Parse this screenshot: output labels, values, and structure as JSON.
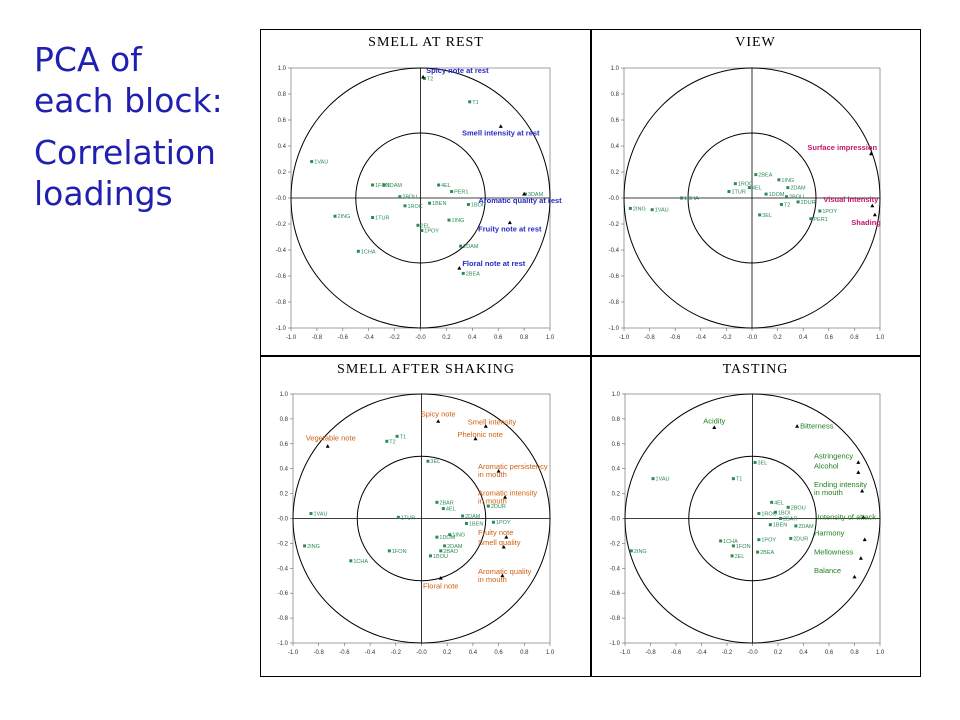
{
  "slide": {
    "title_lines": [
      "PCA of",
      "each block:",
      "Correlation",
      "loadings"
    ]
  },
  "colors": {
    "title": "#2020b0",
    "sample": "#2e8b57",
    "smell_rest_attr": "#2828c8",
    "view_attr": "#c0186a",
    "shaking_attr": "#d06010",
    "tasting_attr": "#208020"
  },
  "chart_data": [
    {
      "type": "scatter",
      "title": "SMELL AT REST",
      "xlim": [
        -1.0,
        1.0
      ],
      "ylim": [
        -1.0,
        1.0
      ],
      "xticks": [
        "-1.0",
        "-0.8",
        "-0.6",
        "-0.4",
        "-0.2",
        "-0.0",
        "0.2",
        "0.4",
        "0.6",
        "0.8",
        "1.0"
      ],
      "yticks": [
        "1.0",
        "0.8",
        "0.6",
        "0.4",
        "0.2",
        "-0.0",
        "-0.2",
        "-0.4",
        "-0.6",
        "-0.8",
        "-1.0"
      ],
      "circles": [
        0.5,
        1.0
      ],
      "samples": [
        {
          "label": "1VAU",
          "x": -0.84,
          "y": 0.28
        },
        {
          "label": "2ING",
          "x": -0.66,
          "y": -0.14
        },
        {
          "label": "1CHA",
          "x": -0.48,
          "y": -0.41
        },
        {
          "label": "1FON",
          "x": -0.37,
          "y": 0.1
        },
        {
          "label": "2BOU",
          "x": -0.16,
          "y": 0.01
        },
        {
          "label": "1DAM",
          "x": -0.28,
          "y": 0.1
        },
        {
          "label": "1ROC",
          "x": -0.12,
          "y": -0.06
        },
        {
          "label": "1TUR",
          "x": -0.37,
          "y": -0.15
        },
        {
          "label": "4EL",
          "x": 0.14,
          "y": 0.1
        },
        {
          "label": "PER1",
          "x": 0.24,
          "y": 0.05
        },
        {
          "label": "1BEN",
          "x": 0.07,
          "y": -0.04
        },
        {
          "label": "1BOI",
          "x": 0.37,
          "y": -0.05
        },
        {
          "label": "2EL",
          "x": -0.02,
          "y": -0.21
        },
        {
          "label": "1POY",
          "x": 0.01,
          "y": -0.25
        },
        {
          "label": "1ING",
          "x": 0.22,
          "y": -0.17
        },
        {
          "label": "2DAM",
          "x": 0.31,
          "y": -0.37
        },
        {
          "label": "2BEA",
          "x": 0.33,
          "y": -0.58
        },
        {
          "label": "3DAM",
          "x": 0.81,
          "y": 0.03
        },
        {
          "label": "T1",
          "x": 0.38,
          "y": 0.74
        },
        {
          "label": "T2",
          "x": 0.03,
          "y": 0.92
        }
      ],
      "attributes": [
        {
          "label": "Spicy note at rest",
          "x": 0.02,
          "y": 0.93
        },
        {
          "label": "Smell intensity at rest",
          "x": 0.62,
          "y": 0.55
        },
        {
          "label": "Aromatic quality at rest",
          "x": 0.8,
          "y": 0.03
        },
        {
          "label": "Fruity note at rest",
          "x": 0.69,
          "y": -0.19
        },
        {
          "label": "Floral note at rest",
          "x": 0.3,
          "y": -0.54
        }
      ]
    },
    {
      "type": "scatter",
      "title": "VIEW",
      "xlim": [
        -1.0,
        1.0
      ],
      "ylim": [
        -1.0,
        1.0
      ],
      "xticks": [
        "-1.0",
        "-0.8",
        "-0.6",
        "-0.4",
        "-0.2",
        "-0.0",
        "0.2",
        "0.4",
        "0.6",
        "0.8",
        "1.0"
      ],
      "yticks": [
        "1.0",
        "0.8",
        "0.6",
        "0.4",
        "0.2",
        "-0.0",
        "-0.2",
        "-0.4",
        "-0.6",
        "-0.8",
        "-1.0"
      ],
      "circles": [
        0.5,
        1.0
      ],
      "samples": [
        {
          "label": "2ING",
          "x": -0.95,
          "y": -0.08
        },
        {
          "label": "1VAU",
          "x": -0.78,
          "y": -0.09
        },
        {
          "label": "1CHA",
          "x": -0.55,
          "y": 0.0
        },
        {
          "label": "2BEA",
          "x": 0.03,
          "y": 0.18
        },
        {
          "label": "1ROC",
          "x": -0.13,
          "y": 0.11
        },
        {
          "label": "4EL",
          "x": -0.02,
          "y": 0.08
        },
        {
          "label": "1ING",
          "x": 0.21,
          "y": 0.14
        },
        {
          "label": "2DAM",
          "x": 0.28,
          "y": 0.08
        },
        {
          "label": "1DOM",
          "x": 0.11,
          "y": 0.03
        },
        {
          "label": "2BOU",
          "x": 0.27,
          "y": 0.01
        },
        {
          "label": "1TUR",
          "x": -0.18,
          "y": 0.05
        },
        {
          "label": "2DUR",
          "x": 0.36,
          "y": -0.03
        },
        {
          "label": "T2",
          "x": 0.23,
          "y": -0.05
        },
        {
          "label": "1POY",
          "x": 0.53,
          "y": -0.1
        },
        {
          "label": "PER1",
          "x": 0.46,
          "y": -0.16
        },
        {
          "label": "3EL",
          "x": 0.06,
          "y": -0.13
        }
      ],
      "attributes": [
        {
          "label": "Surface impression",
          "x": 0.93,
          "y": 0.34
        },
        {
          "label": "Visual intensity",
          "x": 0.94,
          "y": -0.06
        },
        {
          "label": "Shading",
          "x": 0.96,
          "y": -0.13
        }
      ]
    },
    {
      "type": "scatter",
      "title": "SMELL AFTER SHAKING",
      "xlim": [
        -1.0,
        1.0
      ],
      "ylim": [
        -1.0,
        1.0
      ],
      "xticks": [
        "-1.0",
        "-0.8",
        "-0.6",
        "-0.4",
        "-0.2",
        "-0.0",
        "0.2",
        "0.4",
        "0.6",
        "0.8",
        "1.0"
      ],
      "yticks": [
        "1.0",
        "0.8",
        "0.6",
        "0.4",
        "0.2",
        "-0.0",
        "-0.2",
        "-0.4",
        "-0.6",
        "-0.8",
        "-1.0"
      ],
      "circles": [
        0.5,
        1.0
      ],
      "samples": [
        {
          "label": "T1",
          "x": -0.19,
          "y": 0.66
        },
        {
          "label": "T2",
          "x": -0.27,
          "y": 0.62
        },
        {
          "label": "3EL",
          "x": 0.05,
          "y": 0.46
        },
        {
          "label": "1VAU",
          "x": -0.86,
          "y": 0.04
        },
        {
          "label": "2ING",
          "x": -0.91,
          "y": -0.22
        },
        {
          "label": "1CHA",
          "x": -0.55,
          "y": -0.34
        },
        {
          "label": "1FON",
          "x": -0.25,
          "y": -0.26
        },
        {
          "label": "1TUR",
          "x": -0.18,
          "y": 0.01
        },
        {
          "label": "2BAR",
          "x": 0.12,
          "y": 0.13
        },
        {
          "label": "4EL",
          "x": 0.17,
          "y": 0.08
        },
        {
          "label": "2DAM",
          "x": 0.32,
          "y": 0.02
        },
        {
          "label": "1BEN",
          "x": 0.35,
          "y": -0.04
        },
        {
          "label": "2DUR",
          "x": 0.52,
          "y": 0.1
        },
        {
          "label": "1POY",
          "x": 0.56,
          "y": -0.03
        },
        {
          "label": "1ING",
          "x": 0.22,
          "y": -0.13
        },
        {
          "label": "1DOM",
          "x": 0.12,
          "y": -0.15
        },
        {
          "label": "2DAM",
          "x": 0.18,
          "y": -0.22
        },
        {
          "label": "1BOU",
          "x": 0.07,
          "y": -0.3
        },
        {
          "label": "2BAO",
          "x": 0.15,
          "y": -0.26
        }
      ],
      "attributes": [
        {
          "label": "Spicy note",
          "x": 0.13,
          "y": 0.78
        },
        {
          "label": "Vegetable note",
          "x": -0.73,
          "y": 0.58
        },
        {
          "label": "Smell intensity",
          "x": 0.5,
          "y": 0.74
        },
        {
          "label": "Phelonic note",
          "x": 0.42,
          "y": 0.64
        },
        {
          "label": "Aromatic persistency in mouth",
          "x": 0.6,
          "y": 0.38
        },
        {
          "label": "Aromatic intensity in mouth",
          "x": 0.65,
          "y": 0.17
        },
        {
          "label": "Fruity note",
          "x": 0.66,
          "y": -0.15
        },
        {
          "label": "Smell quality",
          "x": 0.64,
          "y": -0.23
        },
        {
          "label": "Aromatic quality in mouth",
          "x": 0.63,
          "y": -0.46
        },
        {
          "label": "Floral note",
          "x": 0.15,
          "y": -0.48
        }
      ]
    },
    {
      "type": "scatter",
      "title": "TASTING",
      "xlim": [
        -1.0,
        1.0
      ],
      "ylim": [
        -1.0,
        1.0
      ],
      "xticks": [
        "-1.0",
        "-0.8",
        "-0.6",
        "-0.4",
        "-0.2",
        "-0.0",
        "0.2",
        "0.4",
        "0.6",
        "0.8",
        "1.0"
      ],
      "yticks": [
        "1.0",
        "0.8",
        "0.6",
        "0.4",
        "0.2",
        "-0.0",
        "-0.2",
        "-0.4",
        "-0.6",
        "-0.8",
        "-1.0"
      ],
      "circles": [
        0.5,
        1.0
      ],
      "samples": [
        {
          "label": "1VAU",
          "x": -0.78,
          "y": 0.32
        },
        {
          "label": "2ING",
          "x": -0.95,
          "y": -0.26
        },
        {
          "label": "3EL",
          "x": 0.02,
          "y": 0.45
        },
        {
          "label": "T1",
          "x": -0.15,
          "y": 0.32
        },
        {
          "label": "4EL",
          "x": 0.15,
          "y": 0.13
        },
        {
          "label": "2BOU",
          "x": 0.28,
          "y": 0.09
        },
        {
          "label": "1BOI",
          "x": 0.18,
          "y": 0.05
        },
        {
          "label": "1ROC",
          "x": 0.05,
          "y": 0.04
        },
        {
          "label": "2BAR",
          "x": 0.22,
          "y": 0.0
        },
        {
          "label": "1BEN",
          "x": 0.14,
          "y": -0.05
        },
        {
          "label": "2DUR",
          "x": 0.3,
          "y": -0.16
        },
        {
          "label": "1POY",
          "x": 0.05,
          "y": -0.17
        },
        {
          "label": "1CHA",
          "x": -0.25,
          "y": -0.18
        },
        {
          "label": "2BEA",
          "x": 0.04,
          "y": -0.27
        },
        {
          "label": "1FON",
          "x": -0.15,
          "y": -0.22
        },
        {
          "label": "2EL",
          "x": -0.16,
          "y": -0.3
        },
        {
          "label": "2DAM",
          "x": 0.34,
          "y": -0.06
        }
      ],
      "attributes": [
        {
          "label": "Acidity",
          "x": -0.3,
          "y": 0.73
        },
        {
          "label": "Bitterness",
          "x": 0.35,
          "y": 0.74
        },
        {
          "label": "Astringency",
          "x": 0.83,
          "y": 0.45
        },
        {
          "label": "Alcohol",
          "x": 0.83,
          "y": 0.37
        },
        {
          "label": "Ending intensity in mouth",
          "x": 0.86,
          "y": 0.22
        },
        {
          "label": "Intensity of attack",
          "x": 0.87,
          "y": 0.01
        },
        {
          "label": "Harmony",
          "x": 0.88,
          "y": -0.17
        },
        {
          "label": "Mellowness",
          "x": 0.85,
          "y": -0.32
        },
        {
          "label": "Balance",
          "x": 0.8,
          "y": -0.47
        }
      ]
    }
  ]
}
